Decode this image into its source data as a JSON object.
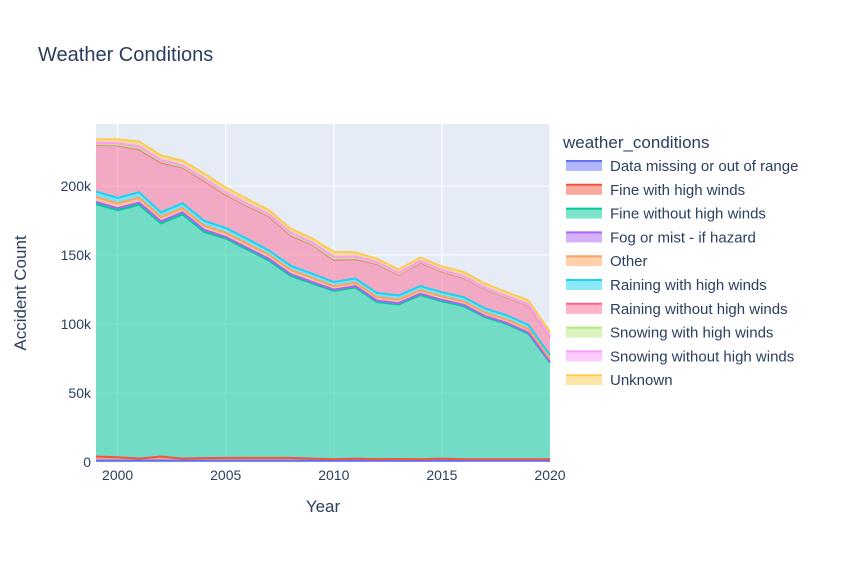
{
  "chart_data": {
    "type": "area",
    "title": "Weather Conditions",
    "xlabel": "Year",
    "ylabel": "Accident Count",
    "xlim": [
      1999,
      2020
    ],
    "ylim": [
      0,
      245000
    ],
    "x_ticks": [
      2000,
      2005,
      2010,
      2015,
      2020
    ],
    "y_ticks": [
      0,
      50000,
      100000,
      150000,
      200000
    ],
    "y_tick_labels": [
      "0",
      "50k",
      "100k",
      "150k",
      "200k"
    ],
    "legend_title": "weather_conditions",
    "legend_position": "right",
    "x": [
      1999,
      2000,
      2001,
      2002,
      2003,
      2004,
      2005,
      2006,
      2007,
      2008,
      2009,
      2010,
      2011,
      2012,
      2013,
      2014,
      2015,
      2016,
      2017,
      2018,
      2019,
      2020
    ],
    "series": [
      {
        "name": "Data missing or out of range",
        "color": "#636efa",
        "values": [
          1000,
          1000,
          1000,
          1000,
          1000,
          1000,
          1000,
          1000,
          1000,
          1000,
          1000,
          1000,
          1000,
          1000,
          1000,
          1000,
          1000,
          1000,
          1000,
          1000,
          1000,
          1000
        ]
      },
      {
        "name": "Fine with high winds",
        "color": "#ef553b",
        "values": [
          3000,
          2500,
          1500,
          3000,
          1500,
          1800,
          2000,
          2000,
          2000,
          2000,
          1500,
          1000,
          1500,
          1000,
          1200,
          1000,
          1500,
          1000,
          1000,
          1000,
          1000,
          1000
        ]
      },
      {
        "name": "Fine without high winds",
        "color": "#00cc96",
        "values": [
          183000,
          179000,
          184000,
          169000,
          177000,
          164000,
          159000,
          151000,
          143000,
          132000,
          127000,
          122000,
          124000,
          114000,
          112000,
          119000,
          114000,
          111000,
          103000,
          98000,
          91000,
          70000
        ]
      },
      {
        "name": "Fog or mist - if hazard",
        "color": "#ab63fa",
        "values": [
          1500,
          1500,
          1500,
          1500,
          1500,
          1500,
          1200,
          1200,
          1200,
          1200,
          1000,
          1000,
          1000,
          1000,
          1000,
          1000,
          1000,
          1000,
          800,
          800,
          800,
          700
        ]
      },
      {
        "name": "Other",
        "color": "#ffa15a",
        "values": [
          3500,
          3500,
          3500,
          3000,
          3000,
          3000,
          3000,
          3000,
          3000,
          3000,
          3000,
          2500,
          2500,
          2500,
          2500,
          2500,
          2500,
          2500,
          2500,
          2500,
          2500,
          2000
        ]
      },
      {
        "name": "Raining with high winds",
        "color": "#19d3f3",
        "values": [
          4000,
          4000,
          4000,
          3500,
          3500,
          3500,
          3500,
          3500,
          3000,
          3000,
          3000,
          3000,
          3000,
          3000,
          3000,
          3000,
          3000,
          3000,
          3000,
          3000,
          3000,
          2800
        ]
      },
      {
        "name": "Raining without high winds",
        "color": "#ff6692",
        "values": [
          34000,
          38000,
          31000,
          36000,
          26000,
          29000,
          24000,
          24000,
          25000,
          22000,
          21000,
          16000,
          14000,
          21000,
          15000,
          17000,
          15000,
          14000,
          14000,
          13000,
          14000,
          13000
        ]
      },
      {
        "name": "Snowing with high winds",
        "color": "#b6e880",
        "values": [
          500,
          500,
          800,
          800,
          500,
          800,
          800,
          600,
          600,
          800,
          600,
          800,
          700,
          500,
          500,
          500,
          500,
          500,
          400,
          400,
          400,
          400
        ]
      },
      {
        "name": "Snowing without high winds",
        "color": "#ff97ff",
        "values": [
          1000,
          1000,
          1500,
          1000,
          1000,
          1000,
          1000,
          800,
          800,
          1200,
          1000,
          1500,
          1300,
          800,
          800,
          700,
          700,
          700,
          600,
          600,
          600,
          600
        ]
      },
      {
        "name": "Unknown",
        "color": "#fecb52",
        "values": [
          2500,
          3000,
          3500,
          3500,
          3500,
          3500,
          3500,
          3500,
          3000,
          3000,
          3000,
          3500,
          3000,
          2500,
          2500,
          2500,
          2500,
          3000,
          3000,
          2800,
          2800,
          2800
        ]
      }
    ]
  }
}
